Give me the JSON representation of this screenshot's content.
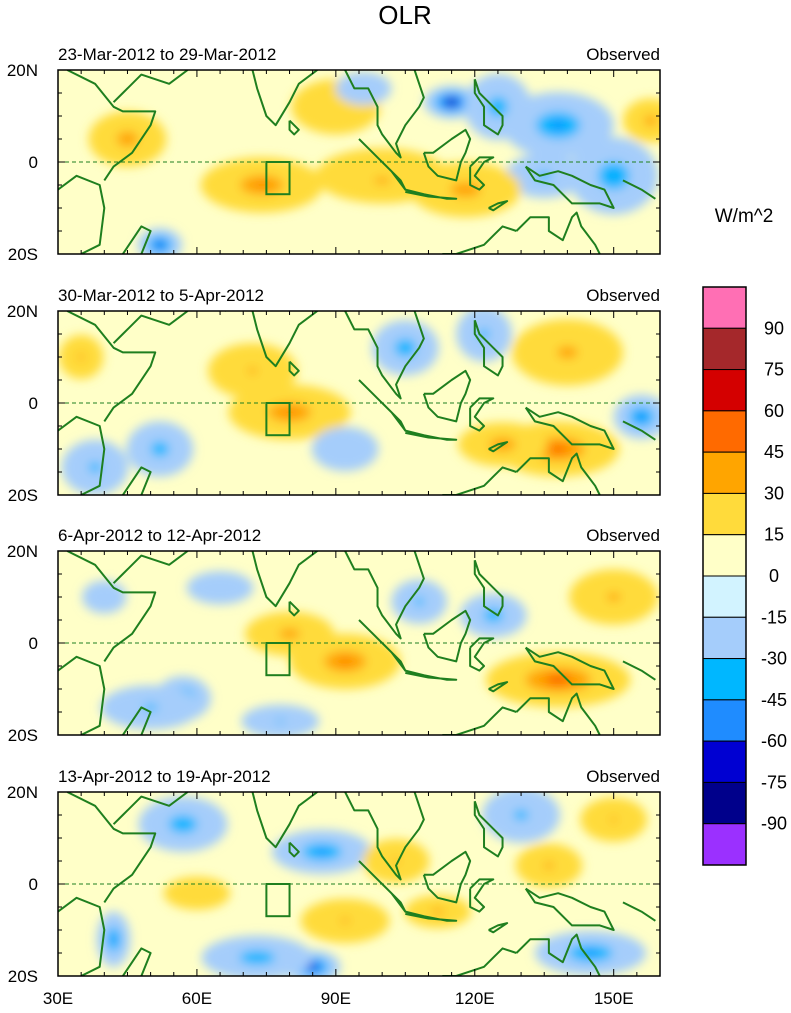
{
  "chart_data": {
    "type": "heatmap",
    "title": "OLR",
    "variable": "OLR anomaly",
    "units": "W/m^2",
    "x_ticks": [
      "30E",
      "60E",
      "90E",
      "120E",
      "150E"
    ],
    "x_tick_values": [
      30,
      60,
      90,
      120,
      150
    ],
    "x_range": [
      30,
      160
    ],
    "y_ticks": [
      "20N",
      "0",
      "20S"
    ],
    "y_tick_values": [
      20,
      0,
      -20
    ],
    "y_range": [
      -20,
      20
    ],
    "colorbar": {
      "labels": [
        "90",
        "75",
        "60",
        "45",
        "30",
        "15",
        "0",
        "-15",
        "-30",
        "-45",
        "-60",
        "-75",
        "-90"
      ],
      "levels": [
        90,
        75,
        60,
        45,
        30,
        15,
        0,
        -15,
        -30,
        -45,
        -60,
        -75,
        -90
      ],
      "colors": [
        "#ff6fb4",
        "#a5282b",
        "#d40000",
        "#ff6a00",
        "#ffa500",
        "#ffdb3b",
        "#ffffc8",
        "#d2f3ff",
        "#a5cdfb",
        "#00b7ff",
        "#1f8cff",
        "#0000d2",
        "#00008b",
        "#9b30ff"
      ]
    },
    "box_region": {
      "lon": [
        75,
        80
      ],
      "lat": [
        -7,
        0
      ]
    },
    "panels": [
      {
        "period": "23-Mar-2012 to 29-Mar-2012",
        "label": "Observed",
        "anomalies": [
          {
            "lon": 115,
            "lat": 13,
            "value": -90,
            "sx": 5,
            "sy": 3
          },
          {
            "lon": 138,
            "lat": 8,
            "value": -40,
            "sx": 10,
            "sy": 6
          },
          {
            "lon": 125,
            "lat": 12,
            "value": -30,
            "sx": 6,
            "sy": 6
          },
          {
            "lon": 150,
            "lat": -3,
            "value": -35,
            "sx": 8,
            "sy": 7
          },
          {
            "lon": 135,
            "lat": -3,
            "value": -22,
            "sx": 7,
            "sy": 4
          },
          {
            "lon": 52,
            "lat": -18,
            "value": -65,
            "sx": 4,
            "sy": 3
          },
          {
            "lon": 100,
            "lat": -3,
            "value": 40,
            "sx": 12,
            "sy": 5
          },
          {
            "lon": 100,
            "lat": -4,
            "value": 20,
            "sx": 10,
            "sy": 4
          },
          {
            "lon": 74,
            "lat": -5,
            "value": 35,
            "sx": 11,
            "sy": 5
          },
          {
            "lon": 118,
            "lat": -6,
            "value": 28,
            "sx": 10,
            "sy": 5
          },
          {
            "lon": 45,
            "lat": 5,
            "value": 28,
            "sx": 7,
            "sy": 5
          },
          {
            "lon": 158,
            "lat": 9,
            "value": 25,
            "sx": 5,
            "sy": 4
          },
          {
            "lon": 90,
            "lat": 12,
            "value": 15,
            "sx": 8,
            "sy": 5
          },
          {
            "lon": 96,
            "lat": 16,
            "value": -15,
            "sx": 5,
            "sy": 3
          }
        ]
      },
      {
        "period": "30-Mar-2012 to 5-Apr-2012",
        "label": "Observed",
        "anomalies": [
          {
            "lon": 80,
            "lat": -2,
            "value": 35,
            "sx": 11,
            "sy": 5
          },
          {
            "lon": 138,
            "lat": -10,
            "value": 45,
            "sx": 11,
            "sy": 5
          },
          {
            "lon": 126,
            "lat": -9,
            "value": 30,
            "sx": 8,
            "sy": 4
          },
          {
            "lon": 72,
            "lat": 7,
            "value": 18,
            "sx": 8,
            "sy": 5
          },
          {
            "lon": 140,
            "lat": 11,
            "value": 22,
            "sx": 10,
            "sy": 6
          },
          {
            "lon": 35,
            "lat": 10,
            "value": 20,
            "sx": 4,
            "sy": 4
          },
          {
            "lon": 105,
            "lat": 12,
            "value": -32,
            "sx": 6,
            "sy": 5
          },
          {
            "lon": 122,
            "lat": 15,
            "value": -22,
            "sx": 5,
            "sy": 5
          },
          {
            "lon": 156,
            "lat": -3,
            "value": -48,
            "sx": 5,
            "sy": 4
          },
          {
            "lon": 52,
            "lat": -10,
            "value": -28,
            "sx": 6,
            "sy": 5
          },
          {
            "lon": 38,
            "lat": -14,
            "value": -22,
            "sx": 6,
            "sy": 5
          },
          {
            "lon": 92,
            "lat": -10,
            "value": -15,
            "sx": 6,
            "sy": 4
          }
        ]
      },
      {
        "period": "6-Apr-2012 to 12-Apr-2012",
        "label": "Observed",
        "anomalies": [
          {
            "lon": 92,
            "lat": -4,
            "value": 38,
            "sx": 10,
            "sy": 5
          },
          {
            "lon": 138,
            "lat": -8,
            "value": 48,
            "sx": 13,
            "sy": 5
          },
          {
            "lon": 80,
            "lat": 2,
            "value": 25,
            "sx": 8,
            "sy": 4
          },
          {
            "lon": 150,
            "lat": 10,
            "value": 20,
            "sx": 8,
            "sy": 5
          },
          {
            "lon": 57,
            "lat": -12,
            "value": -50,
            "sx": 5,
            "sy": 4
          },
          {
            "lon": 50,
            "lat": -14,
            "value": -20,
            "sx": 9,
            "sy": 4
          },
          {
            "lon": 78,
            "lat": -17,
            "value": -18,
            "sx": 7,
            "sy": 3
          },
          {
            "lon": 124,
            "lat": 6,
            "value": -30,
            "sx": 6,
            "sy": 4
          },
          {
            "lon": 108,
            "lat": 9,
            "value": -22,
            "sx": 5,
            "sy": 4
          },
          {
            "lon": 65,
            "lat": 12,
            "value": -15,
            "sx": 6,
            "sy": 3
          },
          {
            "lon": 40,
            "lat": 10,
            "value": -15,
            "sx": 4,
            "sy": 3
          }
        ]
      },
      {
        "period": "13-Apr-2012 to 19-Apr-2012",
        "label": "Observed",
        "anomalies": [
          {
            "lon": 85,
            "lat": -18,
            "value": -75,
            "sx": 5,
            "sy": 3
          },
          {
            "lon": 73,
            "lat": -16,
            "value": -32,
            "sx": 10,
            "sy": 4
          },
          {
            "lon": 145,
            "lat": -15,
            "value": -40,
            "sx": 10,
            "sy": 4
          },
          {
            "lon": 42,
            "lat": -12,
            "value": -45,
            "sx": 3,
            "sy": 5
          },
          {
            "lon": 87,
            "lat": 7,
            "value": -40,
            "sx": 9,
            "sy": 4
          },
          {
            "lon": 57,
            "lat": 13,
            "value": -32,
            "sx": 8,
            "sy": 5
          },
          {
            "lon": 130,
            "lat": 15,
            "value": -22,
            "sx": 7,
            "sy": 5
          },
          {
            "lon": 103,
            "lat": 5,
            "value": 18,
            "sx": 6,
            "sy": 4
          },
          {
            "lon": 112,
            "lat": -6,
            "value": 22,
            "sx": 6,
            "sy": 3
          },
          {
            "lon": 136,
            "lat": 4,
            "value": 20,
            "sx": 6,
            "sy": 4
          },
          {
            "lon": 150,
            "lat": 14,
            "value": 18,
            "sx": 6,
            "sy": 4
          },
          {
            "lon": 92,
            "lat": -8,
            "value": 18,
            "sx": 8,
            "sy": 4
          },
          {
            "lon": 60,
            "lat": -2,
            "value": 15,
            "sx": 6,
            "sy": 3
          }
        ]
      }
    ]
  }
}
